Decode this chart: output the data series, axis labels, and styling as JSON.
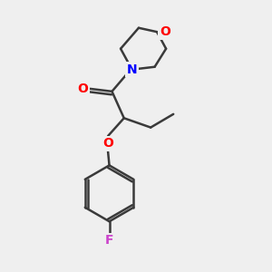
{
  "background_color": "#efefef",
  "bond_color": "#3a3a3a",
  "bond_width": 1.8,
  "atom_colors": {
    "O": "#ff0000",
    "N": "#0000ff",
    "F": "#cc44cc",
    "C": "#000000"
  },
  "fig_size": [
    3.0,
    3.0
  ],
  "dpi": 100
}
